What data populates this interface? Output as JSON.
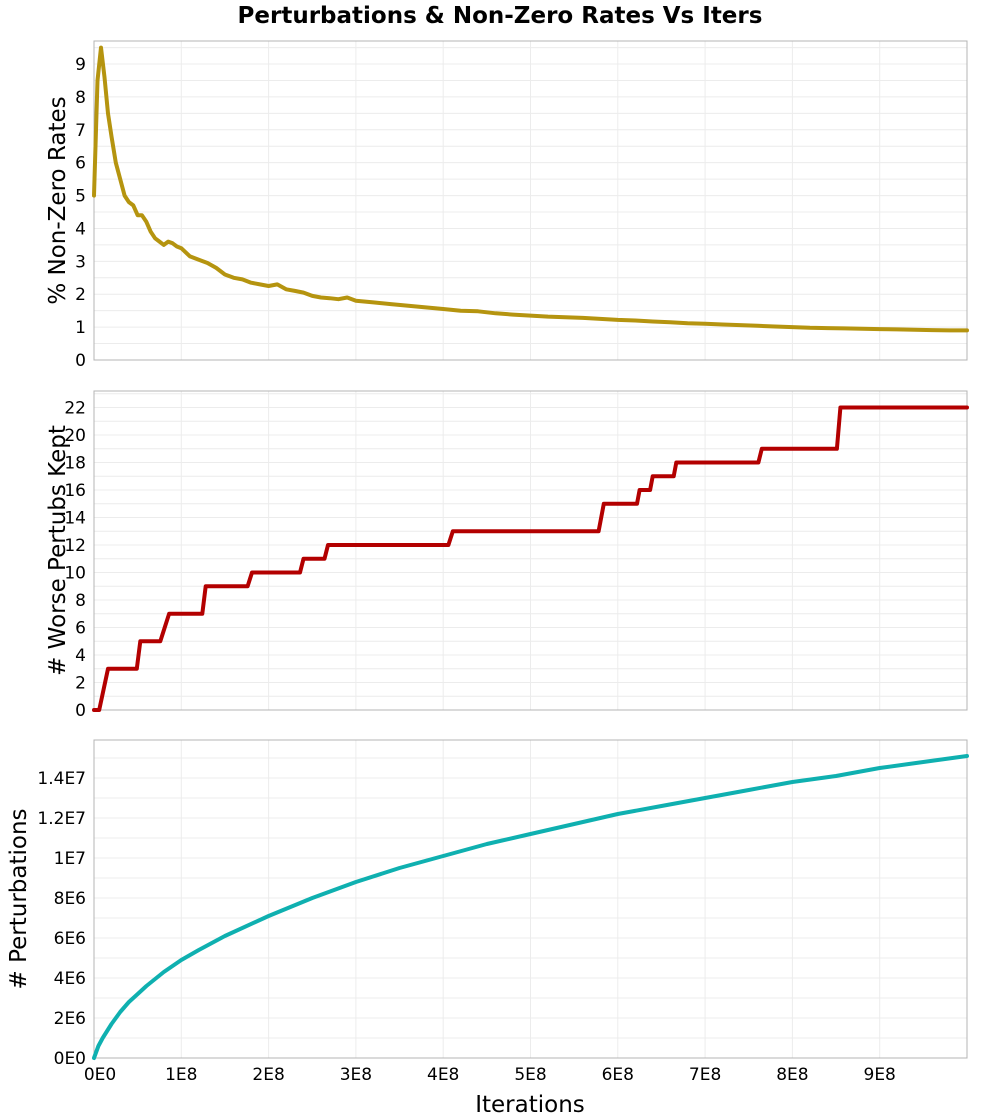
{
  "figure": {
    "title": "Perturbations & Non-Zero Rates Vs Iters",
    "xlabel": "Iterations"
  },
  "chart_data": [
    {
      "type": "line",
      "ylabel": "% Non-Zero Rates",
      "xlim": [
        0,
        1000000000
      ],
      "ylim": [
        0,
        9.7
      ],
      "yticks": [
        0,
        1,
        2,
        3,
        4,
        5,
        6,
        7,
        8,
        9
      ],
      "ytick_labels": [
        "0",
        "1",
        "2",
        "3",
        "4",
        "5",
        "6",
        "7",
        "8",
        "9"
      ],
      "show_xticks": false,
      "grid": true,
      "color": "#b5940f",
      "x": [
        0,
        4000000,
        8000000,
        12000000,
        16000000,
        20000000,
        25000000,
        30000000,
        35000000,
        40000000,
        45000000,
        50000000,
        55000000,
        60000000,
        65000000,
        70000000,
        75000000,
        80000000,
        85000000,
        90000000,
        95000000,
        100000000,
        110000000,
        120000000,
        130000000,
        140000000,
        150000000,
        160000000,
        170000000,
        180000000,
        190000000,
        200000000,
        210000000,
        220000000,
        230000000,
        240000000,
        250000000,
        260000000,
        270000000,
        280000000,
        290000000,
        300000000,
        320000000,
        340000000,
        360000000,
        380000000,
        400000000,
        420000000,
        440000000,
        460000000,
        480000000,
        500000000,
        520000000,
        540000000,
        560000000,
        580000000,
        600000000,
        620000000,
        640000000,
        660000000,
        680000000,
        700000000,
        720000000,
        740000000,
        760000000,
        780000000,
        800000000,
        820000000,
        840000000,
        860000000,
        880000000,
        900000000,
        920000000,
        940000000,
        960000000,
        980000000,
        1000000000
      ],
      "y": [
        5.0,
        8.5,
        9.5,
        8.6,
        7.5,
        6.8,
        6.0,
        5.5,
        5.0,
        4.8,
        4.7,
        4.4,
        4.4,
        4.2,
        3.9,
        3.7,
        3.6,
        3.5,
        3.6,
        3.55,
        3.45,
        3.4,
        3.15,
        3.05,
        2.95,
        2.8,
        2.6,
        2.5,
        2.45,
        2.35,
        2.3,
        2.25,
        2.3,
        2.15,
        2.1,
        2.05,
        1.95,
        1.9,
        1.88,
        1.85,
        1.9,
        1.8,
        1.75,
        1.7,
        1.65,
        1.6,
        1.55,
        1.5,
        1.48,
        1.42,
        1.38,
        1.35,
        1.32,
        1.3,
        1.28,
        1.25,
        1.22,
        1.2,
        1.17,
        1.15,
        1.12,
        1.1,
        1.08,
        1.06,
        1.04,
        1.02,
        1.0,
        0.98,
        0.97,
        0.96,
        0.95,
        0.94,
        0.93,
        0.92,
        0.91,
        0.9,
        0.9
      ]
    },
    {
      "type": "line",
      "ylabel": "# Worse Pertubs Kept",
      "xlim": [
        0,
        1000000000
      ],
      "ylim": [
        0,
        23.2
      ],
      "yticks": [
        0,
        2,
        4,
        6,
        8,
        10,
        12,
        14,
        16,
        18,
        20,
        22
      ],
      "ytick_labels": [
        "0",
        "2",
        "4",
        "6",
        "8",
        "10",
        "12",
        "14",
        "16",
        "18",
        "20",
        "22"
      ],
      "show_xticks": false,
      "grid": true,
      "color": "#b30000",
      "x": [
        0,
        6000000,
        16000000,
        49000000,
        53000000,
        76000000,
        86000000,
        124000000,
        128000000,
        176000000,
        181000000,
        236000000,
        240000000,
        264000000,
        268000000,
        406000000,
        411000000,
        578000000,
        584000000,
        622000000,
        625000000,
        637000000,
        640000000,
        664000000,
        667000000,
        761000000,
        765000000,
        851000000,
        855000000,
        1000000000
      ],
      "y": [
        0,
        0,
        3,
        3,
        5,
        5,
        7,
        7,
        9,
        9,
        10,
        10,
        11,
        11,
        12,
        12,
        13,
        13,
        15,
        15,
        16,
        16,
        17,
        17,
        18,
        18,
        19,
        19,
        22,
        22
      ]
    },
    {
      "type": "line",
      "ylabel": "# Perturbations",
      "xlim": [
        0,
        1000000000
      ],
      "ylim": [
        0,
        15900000
      ],
      "yticks": [
        0,
        2000000,
        4000000,
        6000000,
        8000000,
        10000000,
        12000000,
        14000000
      ],
      "ytick_labels": [
        "0E0",
        "2E6",
        "4E6",
        "6E6",
        "8E6",
        "1E7",
        "1.2E7",
        "1.4E7"
      ],
      "xticks": [
        0,
        100000000,
        200000000,
        300000000,
        400000000,
        500000000,
        600000000,
        700000000,
        800000000,
        900000000
      ],
      "xtick_labels": [
        "0E0",
        "1E8",
        "2E8",
        "3E8",
        "4E8",
        "5E8",
        "6E8",
        "7E8",
        "8E8",
        "9E8"
      ],
      "show_xticks": true,
      "grid": true,
      "color": "#0fb0b0",
      "x": [
        0,
        5000000,
        10000000,
        20000000,
        30000000,
        40000000,
        50000000,
        60000000,
        80000000,
        100000000,
        120000000,
        150000000,
        200000000,
        250000000,
        300000000,
        350000000,
        400000000,
        450000000,
        500000000,
        550000000,
        600000000,
        650000000,
        700000000,
        750000000,
        800000000,
        850000000,
        900000000,
        950000000,
        1000000000
      ],
      "y": [
        0,
        600000,
        1000000,
        1700000,
        2300000,
        2800000,
        3200000,
        3600000,
        4300000,
        4900000,
        5400000,
        6100000,
        7100000,
        8000000,
        8800000,
        9500000,
        10100000,
        10700000,
        11200000,
        11700000,
        12200000,
        12600000,
        13000000,
        13400000,
        13800000,
        14100000,
        14500000,
        14800000,
        15100000
      ]
    }
  ]
}
